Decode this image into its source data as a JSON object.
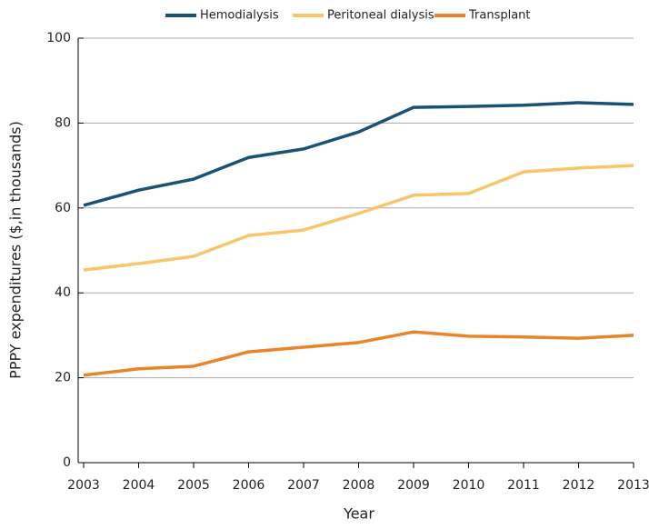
{
  "chart_data": {
    "type": "line",
    "x": [
      2003,
      2004,
      2005,
      2006,
      2007,
      2008,
      2009,
      2010,
      2011,
      2012,
      2013
    ],
    "series": [
      {
        "name": "Hemodialysis",
        "color": "#1a5276",
        "values": [
          60.6,
          64.2,
          66.8,
          71.9,
          73.9,
          77.9,
          83.7,
          83.9,
          84.2,
          84.8,
          84.4
        ]
      },
      {
        "name": "Peritoneal dialysis",
        "color": "#f9c56b",
        "values": [
          45.4,
          46.9,
          48.6,
          53.5,
          54.8,
          58.7,
          63.0,
          63.4,
          68.5,
          69.4,
          70.0
        ]
      },
      {
        "name": "Transplant",
        "color": "#e8852a",
        "values": [
          20.6,
          22.1,
          22.7,
          26.1,
          27.2,
          28.3,
          30.8,
          29.8,
          29.6,
          29.3,
          30.0
        ]
      }
    ],
    "xlim": [
      2003,
      2013
    ],
    "xticks": [
      2003,
      2004,
      2005,
      2006,
      2007,
      2008,
      2009,
      2010,
      2011,
      2012,
      2013
    ],
    "ylim": [
      0,
      100
    ],
    "yticks": [
      0,
      20,
      40,
      60,
      80,
      100
    ],
    "xlabel": "Year",
    "ylabel": "PPPY expenditures ($,in thousands)",
    "grid": true,
    "legend": "top"
  }
}
